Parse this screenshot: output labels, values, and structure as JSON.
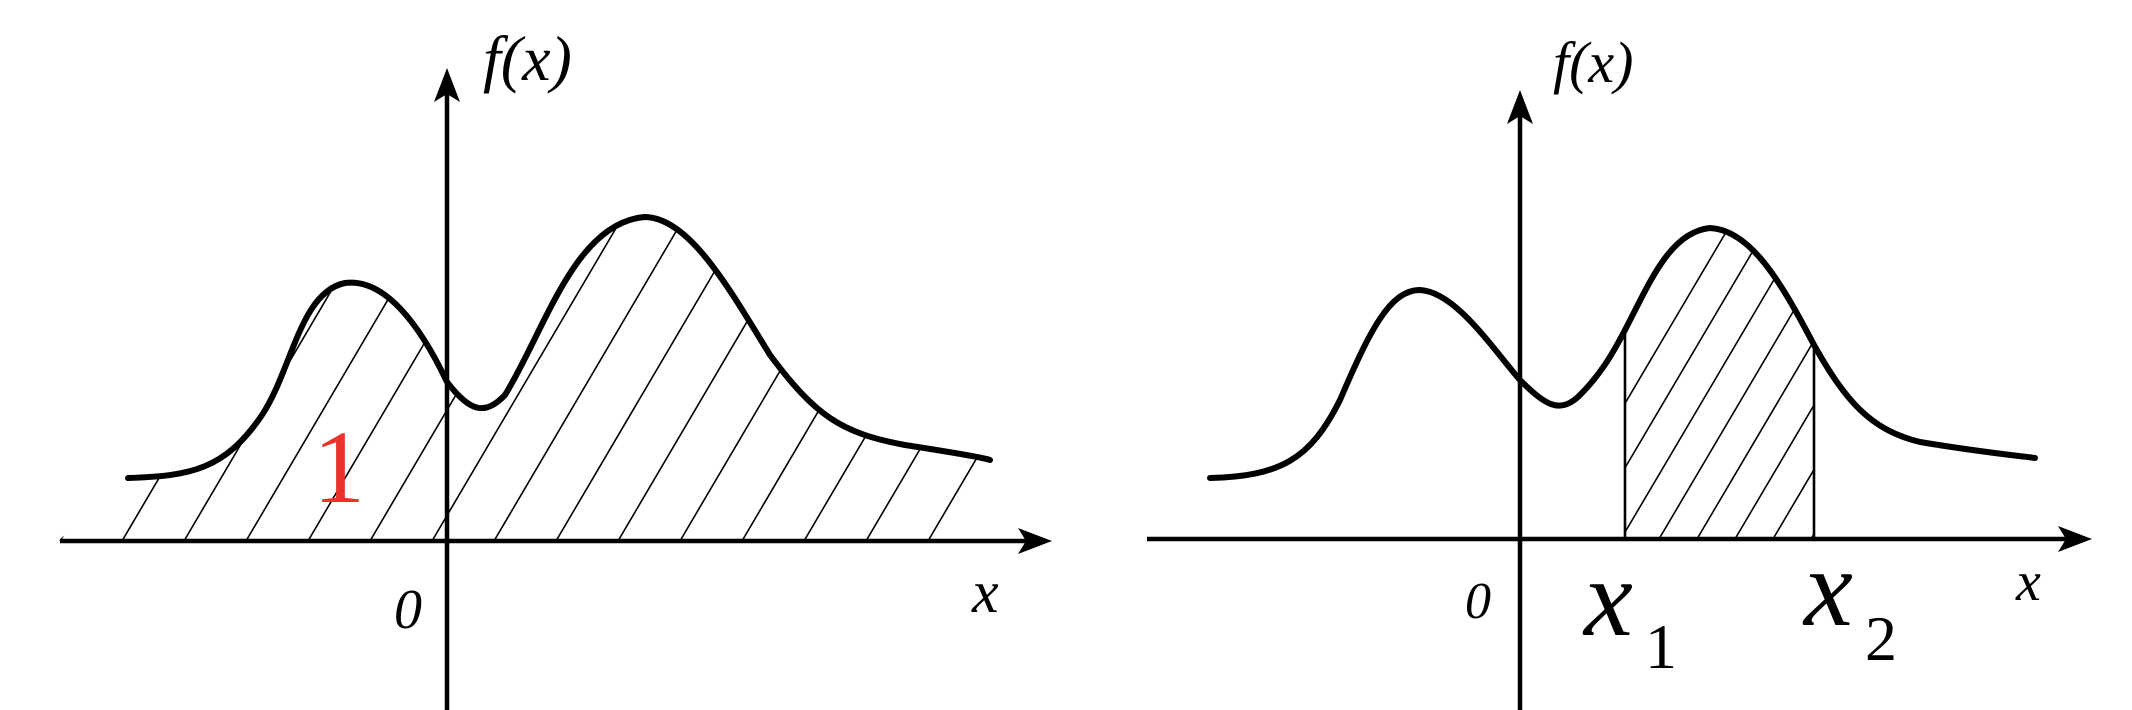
{
  "left_panel": {
    "y_label": "f(x)",
    "x_label": "x",
    "origin_label": "0",
    "area_label": "1",
    "area_label_color": "#e8322a"
  },
  "right_panel": {
    "y_label": "f(x)",
    "x_label": "x",
    "origin_label": "0",
    "x1_symbol": "x",
    "x1_subscript": "1",
    "x2_symbol": "x",
    "x2_subscript": "2"
  }
}
